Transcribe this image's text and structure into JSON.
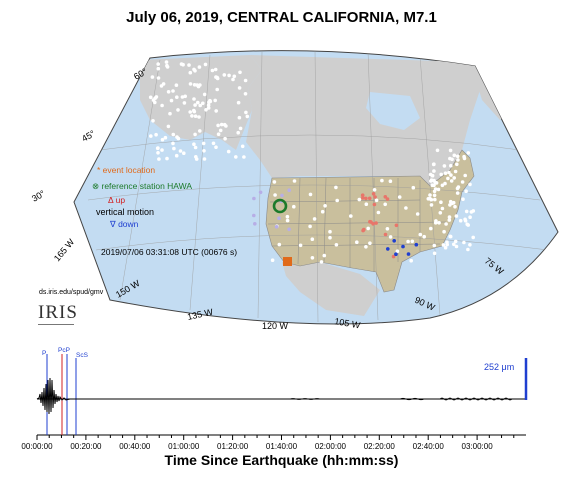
{
  "title": "July 06, 2019, CENTRAL CALIFORNIA, M7.1",
  "legend": {
    "event_location": "event location",
    "reference_station": "reference station HAWA",
    "up": "up",
    "vertical_motion": "vertical motion",
    "down": "down"
  },
  "timestamp": "2019/07/06 03:31:08 UTC (00676 s)",
  "credit_url": "ds.iris.edu/spud/gmv",
  "logo_text": "IRIS",
  "lat_labels": [
    "60°",
    "45°",
    "30°"
  ],
  "lon_labels": [
    "165 W",
    "150 W",
    "135 W",
    "120 W",
    "105 W",
    "90 W",
    "75 W"
  ],
  "colors": {
    "ocean": "#c3dcf2",
    "land_outside": "#cfcfcf",
    "usa_land": "#c9bf9d",
    "event": "#e06a1a",
    "reference": "#1c7a2a",
    "up": "#d22020",
    "down": "#1f3fd0",
    "phase_p": "#1f3fd0",
    "phase_pcp": "#d22020",
    "phase_scs": "#1f3fd0"
  },
  "seismogram": {
    "phases": [
      "P",
      "PcP",
      "ScS"
    ],
    "amplitude_label": "252 μm",
    "x_ticks": [
      "00:00:00",
      "00:20:00",
      "00:40:00",
      "01:00:00",
      "01:20:00",
      "01:40:00",
      "02:00:00",
      "02:20:00",
      "02:40:00",
      "03:00:00"
    ],
    "xlabel": "Time Since Earthquake (hh:mm:ss)"
  }
}
